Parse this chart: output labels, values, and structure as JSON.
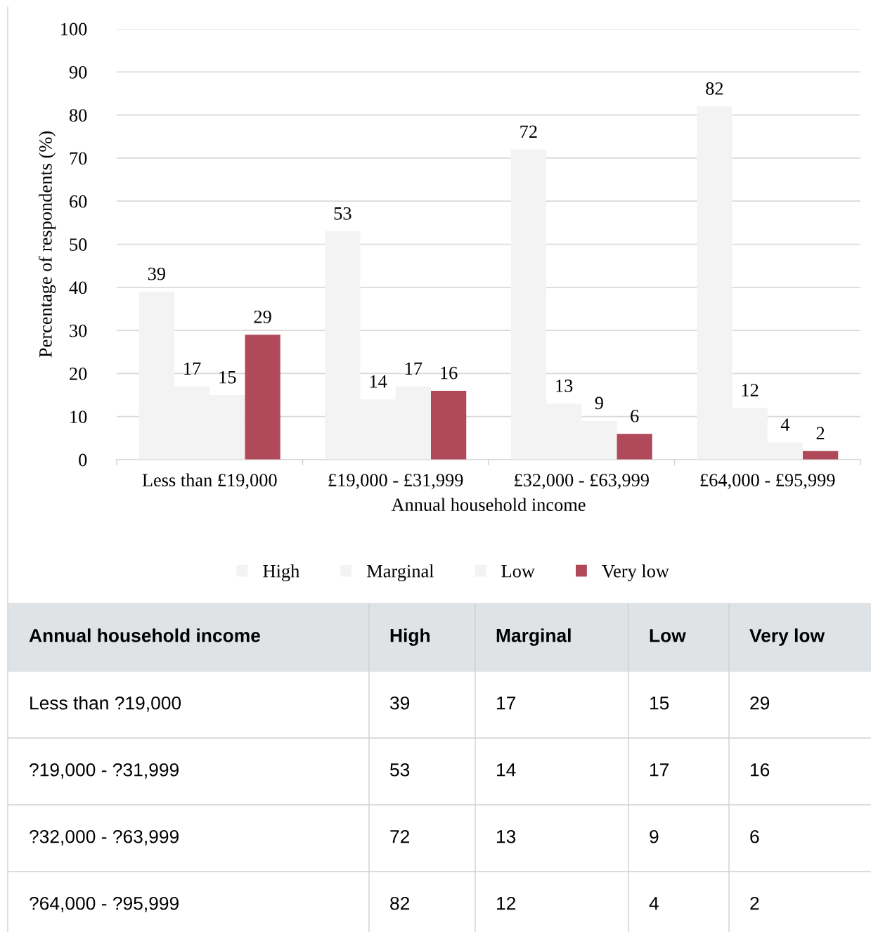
{
  "chart_data": [
    {
      "type": "bar",
      "categories": [
        "Less than £19,000",
        "£19,000 - £31,999",
        "£32,000 - £63,999",
        "£64,000 - £95,999"
      ],
      "series": [
        {
          "name": "High",
          "color": "#f3f3f3",
          "values": [
            39,
            53,
            72,
            82
          ]
        },
        {
          "name": "Marginal",
          "color": "#f3f3f3",
          "values": [
            17,
            14,
            13,
            12
          ]
        },
        {
          "name": "Low",
          "color": "#f3f3f3",
          "values": [
            15,
            17,
            9,
            4
          ]
        },
        {
          "name": "Very low",
          "color": "#b04a5a",
          "values": [
            29,
            16,
            6,
            2
          ]
        }
      ],
      "xlabel": "Annual household income",
      "ylabel": "Percentage of respondents (%)",
      "ylim": [
        0,
        100
      ],
      "yticks": [
        0,
        10,
        20,
        30,
        40,
        50,
        60,
        70,
        80,
        90,
        100
      ],
      "grid": "y",
      "legend": "bottom",
      "data_labels": true
    },
    {
      "type": "other",
      "categories": [
        "Less than ?19,000",
        "?19,000 - ?31,999",
        "?32,000 - ?63,999",
        "?64,000 - ?95,999"
      ],
      "xlabel": "Annual household income",
      "series": [
        {
          "name": "High",
          "values": [
            39,
            53,
            72,
            82
          ]
        },
        {
          "name": "Marginal",
          "values": [
            17,
            14,
            13,
            12
          ]
        },
        {
          "name": "Low",
          "values": [
            15,
            17,
            9,
            4
          ]
        },
        {
          "name": "Very low",
          "values": [
            29,
            16,
            6,
            2
          ]
        }
      ],
      "data_labels": true
    }
  ]
}
